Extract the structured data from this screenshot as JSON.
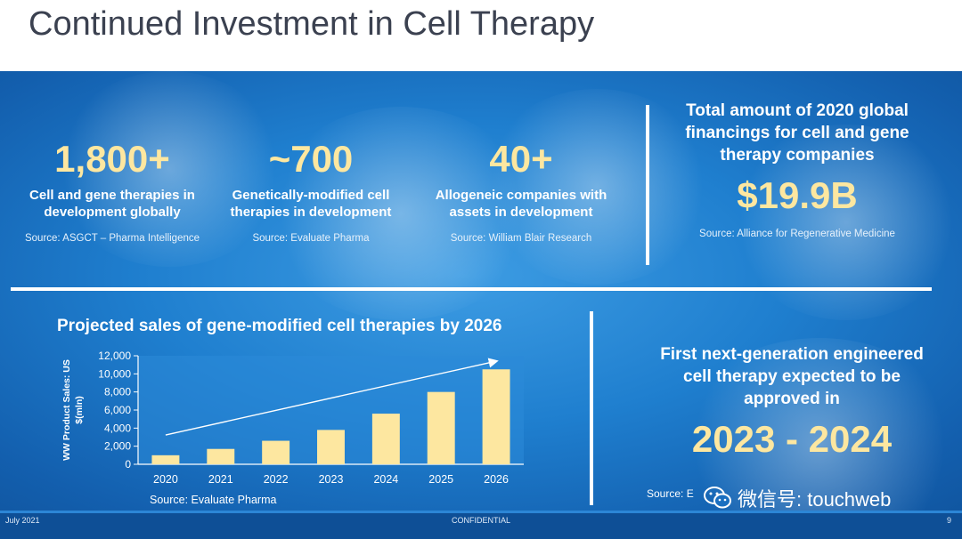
{
  "slide": {
    "title": "Continued Investment in Cell Therapy"
  },
  "stats": [
    {
      "value": "1,800+",
      "desc_line1": "Cell and gene therapies in",
      "desc_line2": "development globally",
      "source": "Source: ASGCT – Pharma Intelligence"
    },
    {
      "value": "~700",
      "desc_line1": "Genetically-modified cell",
      "desc_line2": "therapies in development",
      "source": "Source: Evaluate Pharma"
    },
    {
      "value": "40+",
      "desc_line1": "Allogeneic companies with",
      "desc_line2": "assets in development",
      "source": "Source: William Blair Research"
    }
  ],
  "financing": {
    "head_line1": "Total amount of 2020 global",
    "head_line2": "financings for cell and gene",
    "head_line3": "therapy companies",
    "value": "$19.9B",
    "source": "Source: Alliance for Regenerative Medicine"
  },
  "chart_data": {
    "type": "bar",
    "title": "Projected sales of gene-modified cell therapies by 2026",
    "ylabel_line1": "WW Product Sales: US",
    "ylabel_line2": "$(mln)",
    "xlabel": "",
    "categories": [
      "2020",
      "2021",
      "2022",
      "2023",
      "2024",
      "2025",
      "2026"
    ],
    "values": [
      1000,
      1700,
      2600,
      3800,
      5600,
      8000,
      10500
    ],
    "ylim": [
      0,
      12000
    ],
    "yticks": [
      "0",
      "2,000",
      "4,000",
      "6,000",
      "8,000",
      "10,000",
      "12,000"
    ],
    "trend_arrow": true,
    "grid": false,
    "source": "Source: Evaluate Pharma",
    "colors": {
      "bar": "#fde7a0",
      "axis": "#ffffff",
      "plot_bg": "#2b8ad9"
    }
  },
  "next_gen": {
    "head_line1": "First next-generation engineered",
    "head_line2": "cell therapy expected to be",
    "head_line3": "approved in",
    "value": "2023 - 2024",
    "source": "Source: E"
  },
  "watermark": {
    "icon": "wechat-icon",
    "text": "微信号: touchweb"
  },
  "footer": {
    "date": "July 2021",
    "confidential": "CONFIDENTIAL",
    "page": "9"
  },
  "colors": {
    "accent_yellow": "#fde7a0",
    "panel_blue": "#1f7fcf",
    "footer_blue": "#0e4f96",
    "title_gray": "#3b4150"
  }
}
